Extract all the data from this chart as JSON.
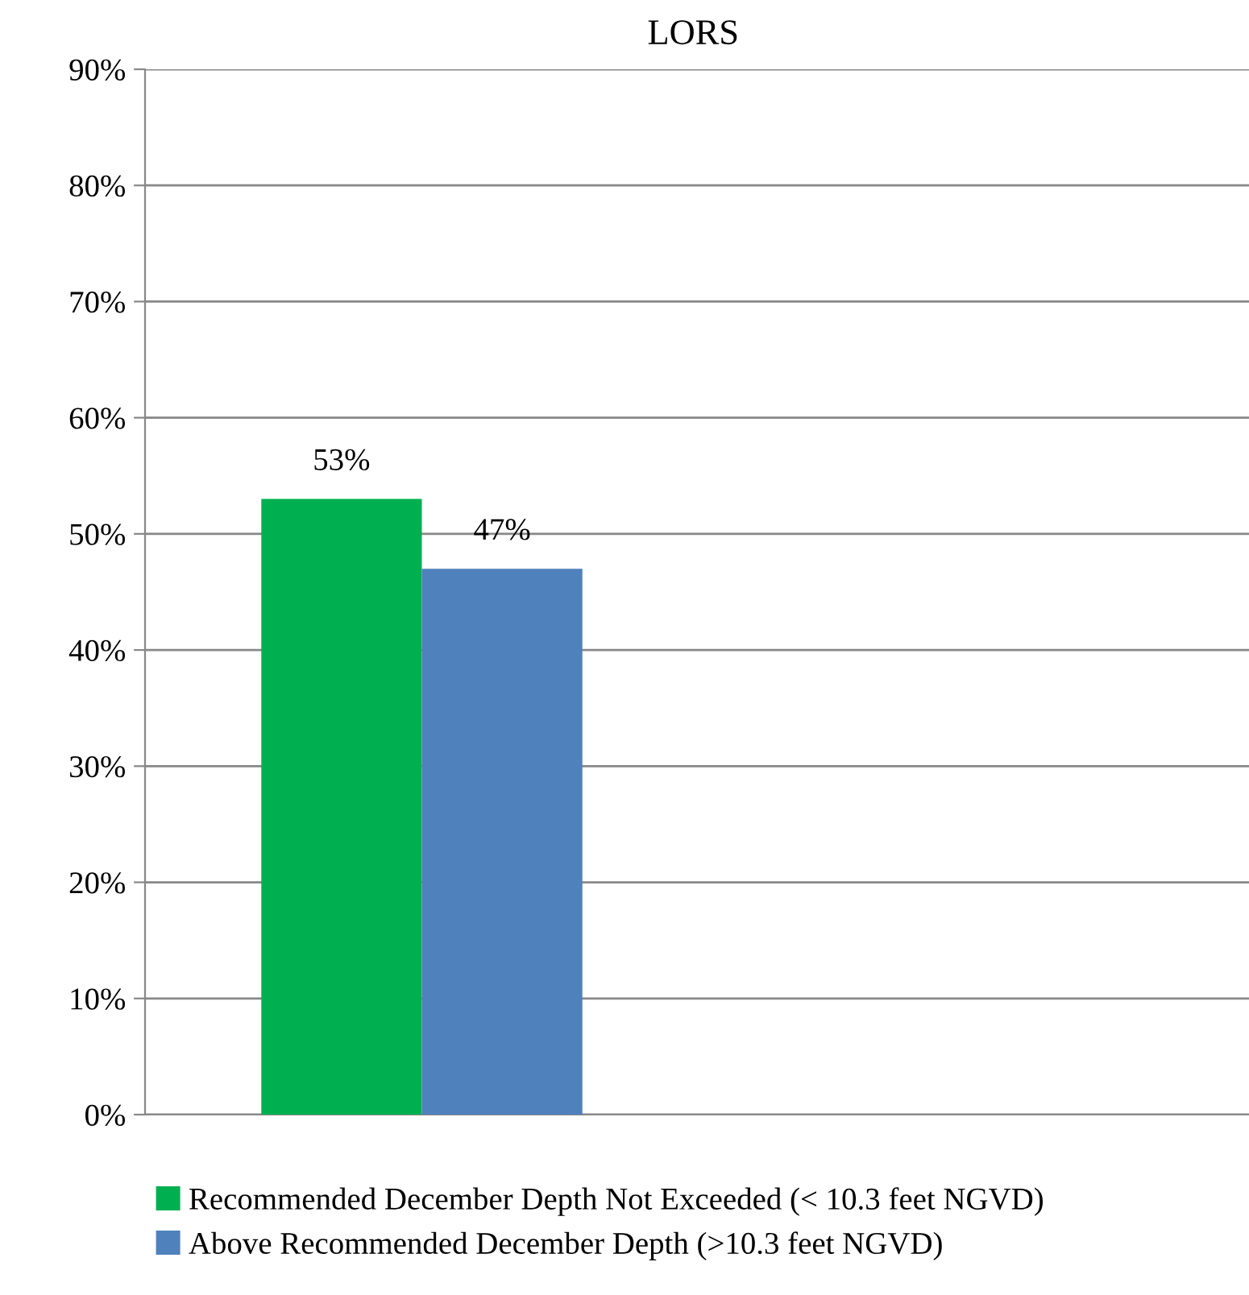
{
  "chart_data": {
    "type": "bar",
    "title": "LORS",
    "categories": [
      null,
      null
    ],
    "series": [
      {
        "name": "Recommended December Depth Not Exceeded (< 10.3 feet NGVD)",
        "color": "#00b050",
        "values": [
          53,
          null
        ],
        "value_labels": [
          "53%",
          null
        ]
      },
      {
        "name": "Above Recommended December Depth (>10.3 feet NGVD)",
        "color": "#4f81bd",
        "values": [
          47,
          null
        ],
        "value_labels": [
          "47%",
          null
        ]
      }
    ],
    "ylim": [
      0,
      90
    ],
    "yticks": [
      {
        "value": 0,
        "label": "0%"
      },
      {
        "value": 10,
        "label": "10%"
      },
      {
        "value": 20,
        "label": "20%"
      },
      {
        "value": 30,
        "label": "30%"
      },
      {
        "value": 40,
        "label": "40%"
      },
      {
        "value": 50,
        "label": "50%"
      },
      {
        "value": 60,
        "label": "60%"
      },
      {
        "value": 70,
        "label": "70%"
      },
      {
        "value": 80,
        "label": "80%"
      },
      {
        "value": 90,
        "label": "90%"
      }
    ],
    "grid": "y",
    "legend": "bottom"
  }
}
